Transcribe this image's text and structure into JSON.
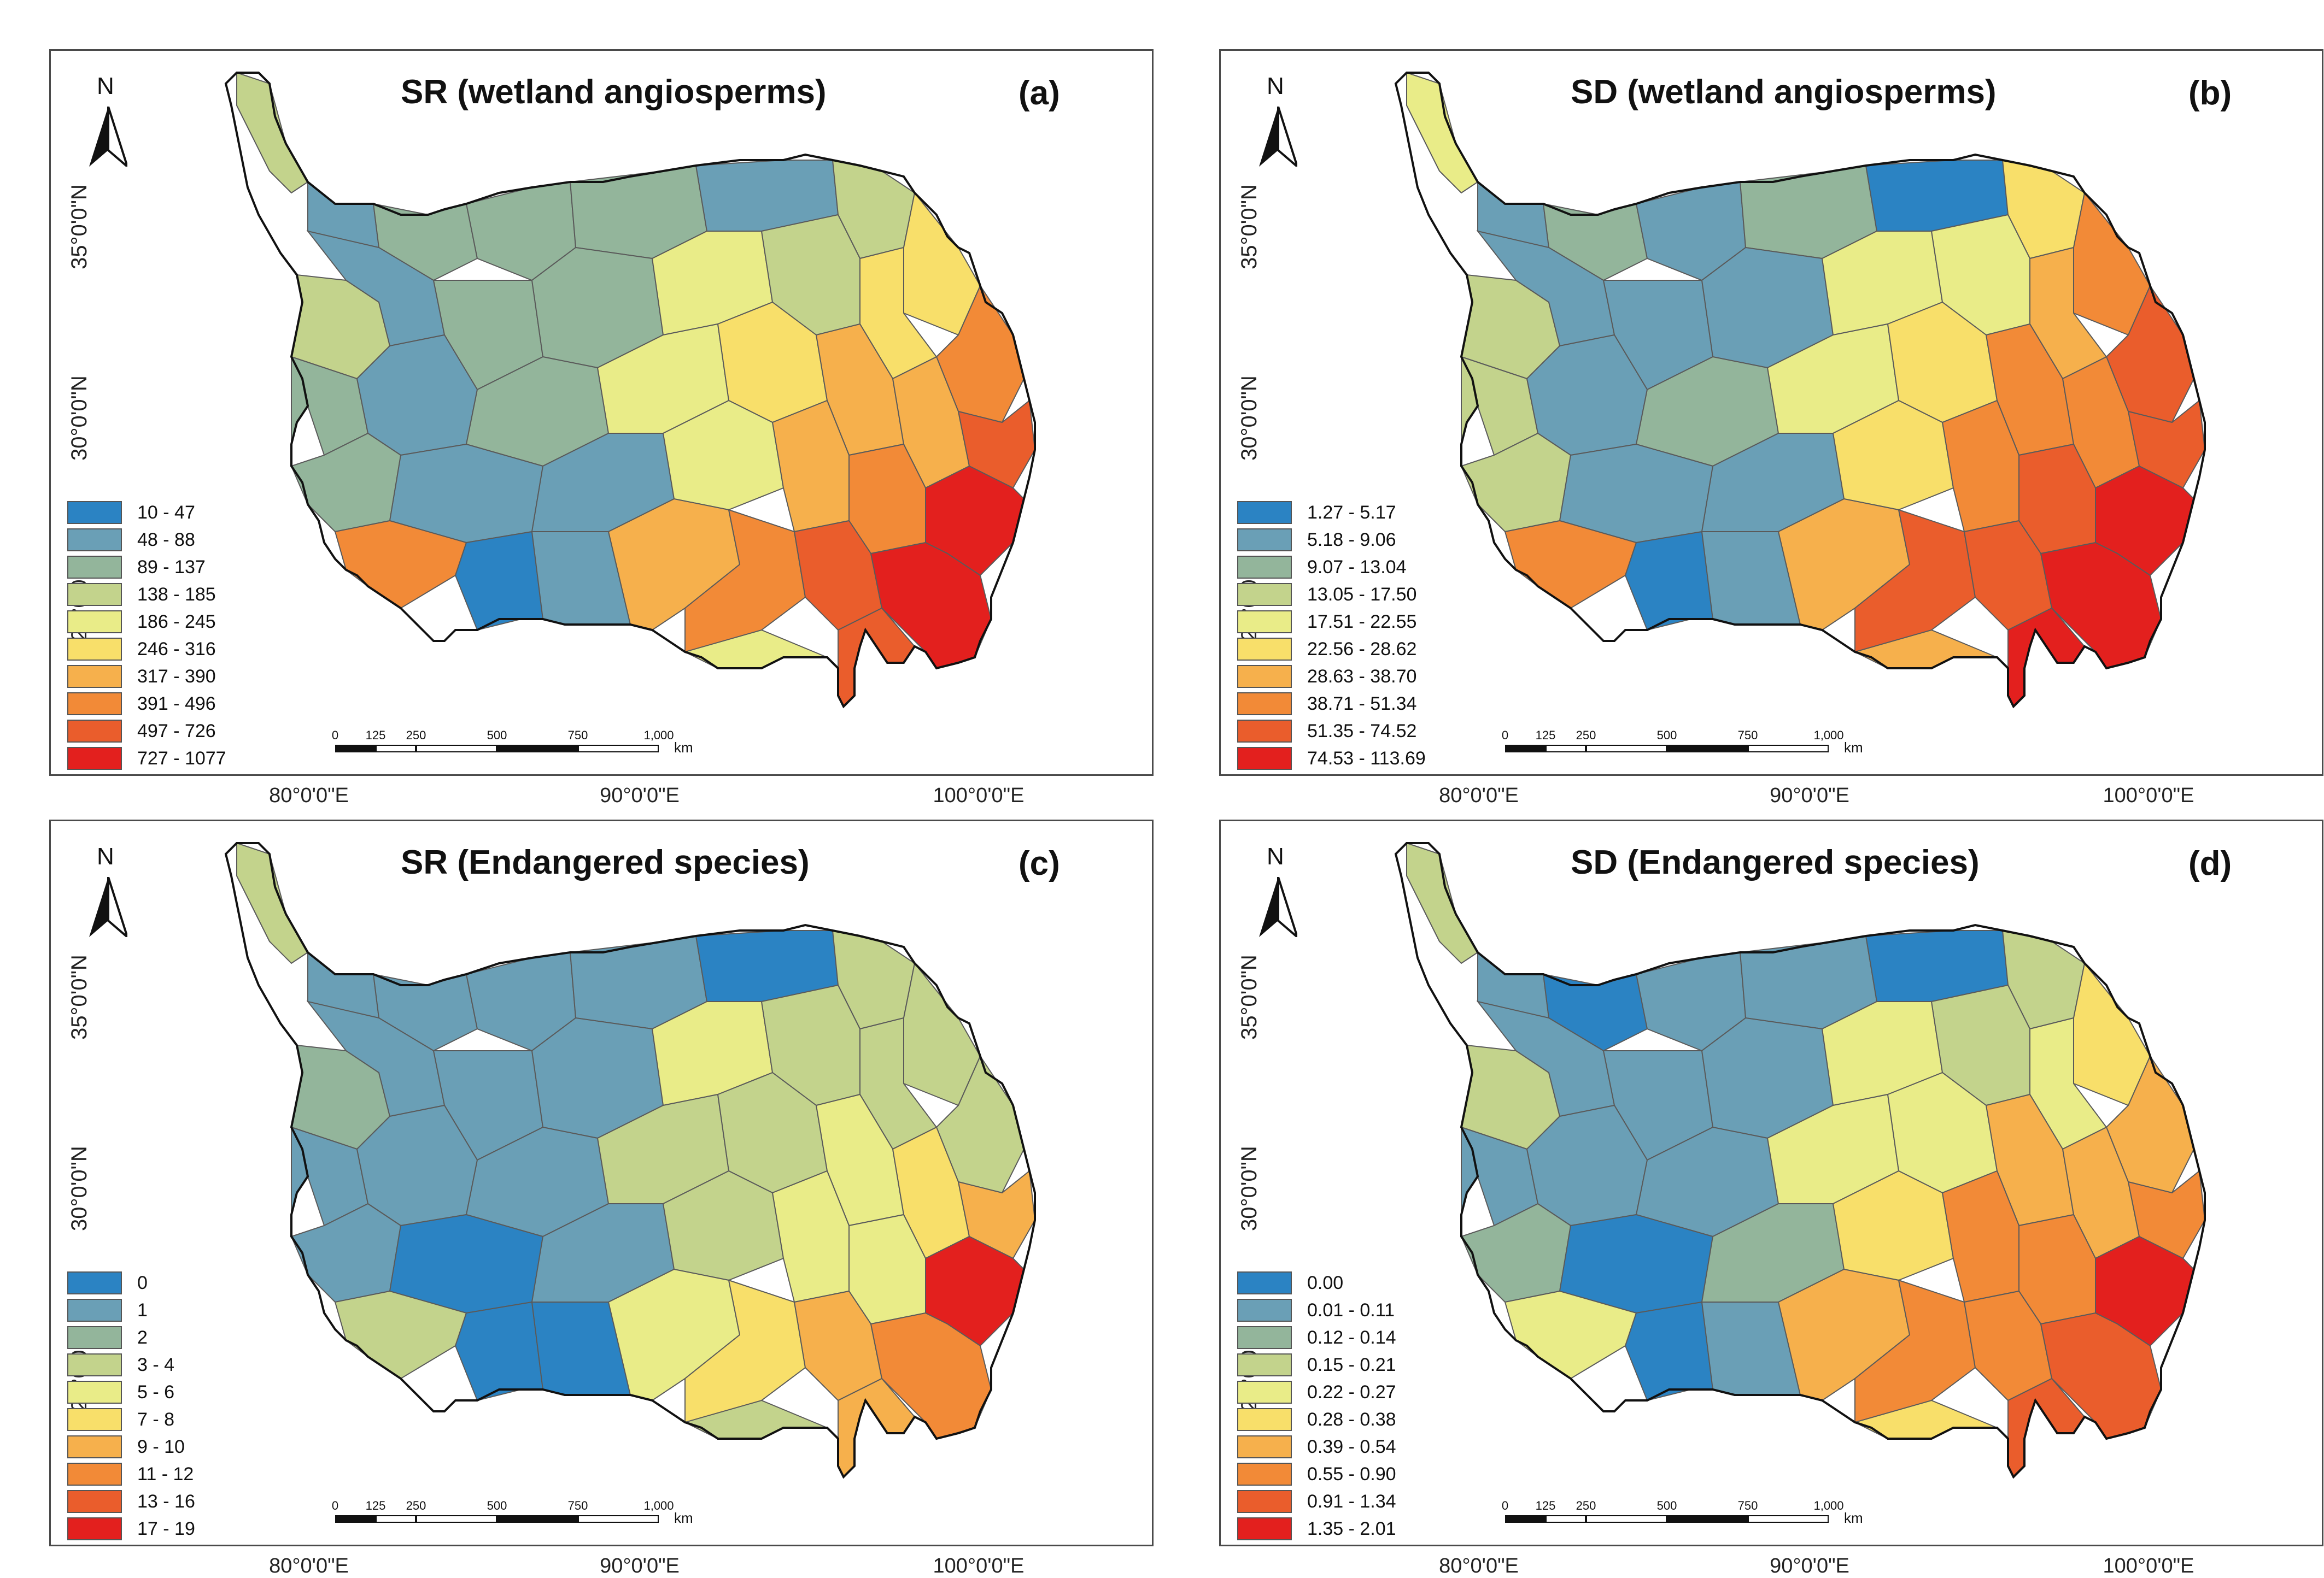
{
  "panels": [
    {
      "title": "SR (wetland angiosperms)",
      "label": "(a)",
      "north": "N",
      "lat_labels": [
        "35°0'0\"N",
        "30°0'0\"N",
        "25°0'0\"N"
      ],
      "lon_labels": [
        "80°0'0\"E",
        "90°0'0\"E",
        "100°0'0\"E"
      ],
      "scale": {
        "ticks": [
          "0",
          "125",
          "250",
          "500",
          "750",
          "1,000"
        ],
        "unit": "km"
      },
      "legend": [
        {
          "label": "10 - 47",
          "color": "#2b83c3"
        },
        {
          "label": "48 - 88",
          "color": "#6a9fb6"
        },
        {
          "label": "89 - 137",
          "color": "#93b59b"
        },
        {
          "label": "138 - 185",
          "color": "#c3d38c"
        },
        {
          "label": "186 - 245",
          "color": "#e9ec88"
        },
        {
          "label": "246 - 316",
          "color": "#f8df6a"
        },
        {
          "label": "317 - 390",
          "color": "#f6b04c"
        },
        {
          "label": "391 - 496",
          "color": "#f28a37"
        },
        {
          "label": "497 - 726",
          "color": "#ea5d2c"
        },
        {
          "label": "727 - 1077",
          "color": "#e3201e"
        }
      ]
    },
    {
      "title": "SD (wetland angiosperms)",
      "label": "(b)",
      "north": "N",
      "lat_labels": [
        "35°0'0\"N",
        "30°0'0\"N",
        "25°0'0\"N"
      ],
      "lon_labels": [
        "80°0'0\"E",
        "90°0'0\"E",
        "100°0'0\"E"
      ],
      "scale": {
        "ticks": [
          "0",
          "125",
          "250",
          "500",
          "750",
          "1,000"
        ],
        "unit": "km"
      },
      "legend": [
        {
          "label": "1.27 - 5.17",
          "color": "#2b83c3"
        },
        {
          "label": "5.18 - 9.06",
          "color": "#6a9fb6"
        },
        {
          "label": "9.07 - 13.04",
          "color": "#93b59b"
        },
        {
          "label": "13.05 - 17.50",
          "color": "#c3d38c"
        },
        {
          "label": "17.51 - 22.55",
          "color": "#e9ec88"
        },
        {
          "label": "22.56 - 28.62",
          "color": "#f8df6a"
        },
        {
          "label": "28.63 - 38.70",
          "color": "#f6b04c"
        },
        {
          "label": "38.71 - 51.34",
          "color": "#f28a37"
        },
        {
          "label": "51.35 - 74.52",
          "color": "#ea5d2c"
        },
        {
          "label": "74.53 - 113.69",
          "color": "#e3201e"
        }
      ]
    },
    {
      "title": "SR (Endangered species)",
      "label": "(c)",
      "north": "N",
      "lat_labels": [
        "35°0'0\"N",
        "30°0'0\"N",
        "25°0'0\"N"
      ],
      "lon_labels": [
        "80°0'0\"E",
        "90°0'0\"E",
        "100°0'0\"E"
      ],
      "scale": {
        "ticks": [
          "0",
          "125",
          "250",
          "500",
          "750",
          "1,000"
        ],
        "unit": "km"
      },
      "legend": [
        {
          "label": "0",
          "color": "#2b83c3"
        },
        {
          "label": "1",
          "color": "#6a9fb6"
        },
        {
          "label": "2",
          "color": "#93b59b"
        },
        {
          "label": "3 - 4",
          "color": "#c3d38c"
        },
        {
          "label": "5 - 6",
          "color": "#e9ec88"
        },
        {
          "label": "7 - 8",
          "color": "#f8df6a"
        },
        {
          "label": "9 - 10",
          "color": "#f6b04c"
        },
        {
          "label": "11 - 12",
          "color": "#f28a37"
        },
        {
          "label": "13 - 16",
          "color": "#ea5d2c"
        },
        {
          "label": "17 - 19",
          "color": "#e3201e"
        }
      ]
    },
    {
      "title": "SD (Endangered species)",
      "label": "(d)",
      "north": "N",
      "lat_labels": [
        "35°0'0\"N",
        "30°0'0\"N",
        "25°0'0\"N"
      ],
      "lon_labels": [
        "80°0'0\"E",
        "90°0'0\"E",
        "100°0'0\"E"
      ],
      "scale": {
        "ticks": [
          "0",
          "125",
          "250",
          "500",
          "750",
          "1,000"
        ],
        "unit": "km"
      },
      "legend": [
        {
          "label": "0.00",
          "color": "#2b83c3"
        },
        {
          "label": "0.01 - 0.11",
          "color": "#6a9fb6"
        },
        {
          "label": "0.12 - 0.14",
          "color": "#93b59b"
        },
        {
          "label": "0.15 - 0.21",
          "color": "#c3d38c"
        },
        {
          "label": "0.22 - 0.27",
          "color": "#e9ec88"
        },
        {
          "label": "0.28 - 0.38",
          "color": "#f8df6a"
        },
        {
          "label": "0.39 - 0.54",
          "color": "#f6b04c"
        },
        {
          "label": "0.55 - 0.90",
          "color": "#f28a37"
        },
        {
          "label": "0.91 - 1.34",
          "color": "#ea5d2c"
        },
        {
          "label": "1.35 - 2.01",
          "color": "#e3201e"
        }
      ]
    }
  ]
}
